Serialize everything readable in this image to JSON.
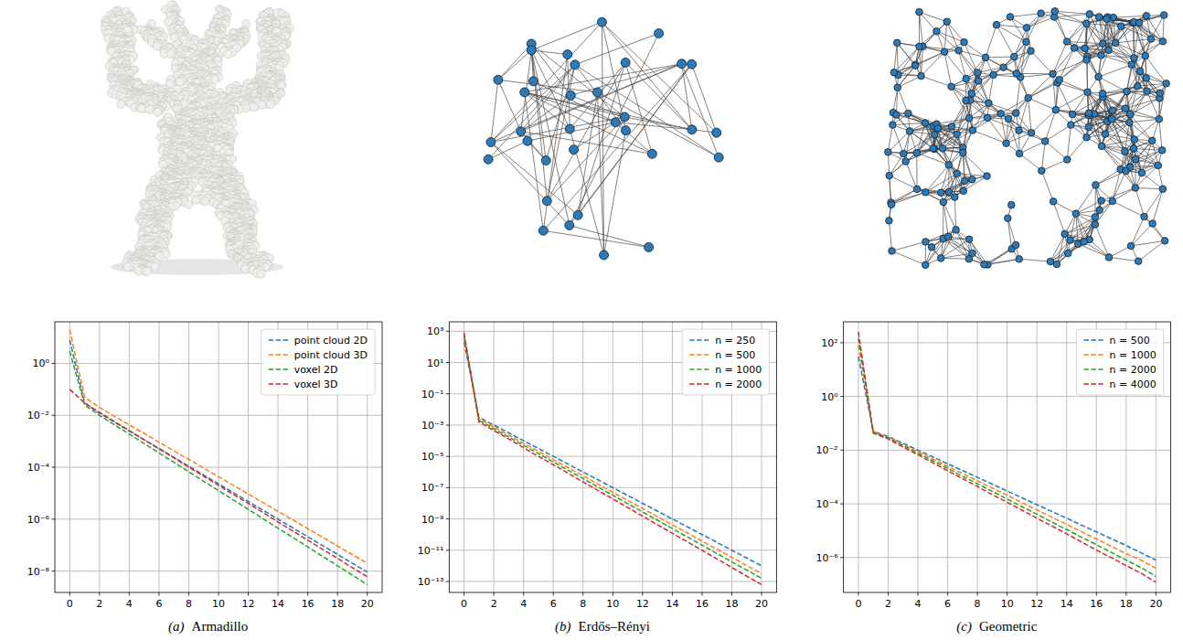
{
  "chart_data": [
    {
      "type": "line",
      "panel_label": "(a)",
      "title": "Armadillo",
      "x": [
        0,
        1,
        2,
        3,
        4,
        5,
        6,
        7,
        8,
        9,
        10,
        11,
        12,
        13,
        14,
        15,
        16,
        17,
        18,
        19,
        20
      ],
      "xlim": [
        -1,
        21
      ],
      "xticks": [
        0,
        2,
        4,
        6,
        8,
        10,
        12,
        14,
        16,
        18,
        20
      ],
      "ylim": [
        1.5e-09,
        40
      ],
      "yticks": [
        {
          "value": 1,
          "label": "10⁰"
        },
        {
          "value": 0.01,
          "label": "10⁻²"
        },
        {
          "value": 0.0001,
          "label": "10⁻⁴"
        },
        {
          "value": 1e-06,
          "label": "10⁻⁶"
        },
        {
          "value": 1e-08,
          "label": "10⁻⁸"
        }
      ],
      "log": "y",
      "grid": true,
      "legend": "upper right",
      "line_style": "dashed",
      "series": [
        {
          "name": "point cloud 2D",
          "color": "#1f77b4",
          "values": [
            8,
            0.03,
            0.012,
            0.0055,
            0.0025,
            0.00115,
            0.00053,
            0.00024,
            0.00011,
            5e-05,
            2.3e-05,
            1.05e-05,
            4.8e-06,
            2.2e-06,
            1e-06,
            4.6e-07,
            2.1e-07,
            9.6e-08,
            4.4e-08,
            2e-08,
            9.2e-09
          ]
        },
        {
          "name": "point cloud 3D",
          "color": "#ff7f0e",
          "values": [
            20,
            0.05,
            0.02,
            0.0093,
            0.0043,
            0.002,
            0.00093,
            0.00043,
            0.0002,
            9.3e-05,
            4.3e-05,
            2e-05,
            9.3e-06,
            4.3e-06,
            2e-06,
            9.3e-07,
            4.3e-07,
            2e-07,
            9.3e-08,
            4.3e-08,
            2e-08
          ]
        },
        {
          "name": "voxel 2D",
          "color": "#2ca02c",
          "values": [
            3,
            0.025,
            0.01,
            0.00435,
            0.00189,
            0.00082,
            0.000357,
            0.000155,
            6.7e-05,
            2.9e-05,
            1.27e-05,
            5.5e-06,
            2.4e-06,
            1.04e-06,
            4.5e-07,
            1.96e-07,
            8.5e-08,
            3.7e-08,
            1.6e-08,
            7e-09,
            3e-09
          ]
        },
        {
          "name": "voxel 3D",
          "color": "#d62728",
          "values": [
            0.1,
            0.03,
            0.013,
            0.0058,
            0.0026,
            0.00114,
            0.00051,
            0.00023,
            0.0001,
            4.5e-05,
            2e-05,
            8.9e-06,
            4e-06,
            1.8e-06,
            7.8e-07,
            3.5e-07,
            1.55e-07,
            6.9e-08,
            3.1e-08,
            1.35e-08,
            6e-09
          ]
        }
      ]
    },
    {
      "type": "line",
      "panel_label": "(b)",
      "title": "Erdős–Rényi",
      "x": [
        0,
        1,
        2,
        3,
        4,
        5,
        6,
        7,
        8,
        9,
        10,
        11,
        12,
        13,
        14,
        15,
        16,
        17,
        18,
        19,
        20
      ],
      "xlim": [
        -1,
        21
      ],
      "xticks": [
        0,
        2,
        4,
        6,
        8,
        10,
        12,
        14,
        16,
        18,
        20
      ],
      "ylim": [
        2e-14,
        4000
      ],
      "yticks": [
        {
          "value": 1000,
          "label": "10³"
        },
        {
          "value": 10,
          "label": "10¹"
        },
        {
          "value": 0.1,
          "label": "10⁻¹"
        },
        {
          "value": 0.001,
          "label": "10⁻³"
        },
        {
          "value": 1e-05,
          "label": "10⁻⁵"
        },
        {
          "value": 1e-07,
          "label": "10⁻⁷"
        },
        {
          "value": 1e-09,
          "label": "10⁻⁹"
        },
        {
          "value": 1e-11,
          "label": "10⁻¹¹"
        },
        {
          "value": 1e-13,
          "label": "10⁻¹³"
        }
      ],
      "log": "y",
      "grid": true,
      "legend": "upper right",
      "line_style": "dashed",
      "series": [
        {
          "name": "n = 250",
          "color": "#1f77b4",
          "values": [
            200,
            0.0032,
            0.001,
            0.00032,
            0.0001,
            3.2e-05,
            1e-05,
            3.2e-06,
            1e-06,
            3.2e-07,
            1e-07,
            3.2e-08,
            1e-08,
            3.2e-09,
            1e-09,
            3.2e-10,
            1e-10,
            3.2e-11,
            1e-11,
            3.2e-12,
            1e-12
          ]
        },
        {
          "name": "n = 500",
          "color": "#ff7f0e",
          "values": [
            400,
            0.0025,
            0.00076,
            0.00023,
            6.9e-05,
            2.1e-05,
            6.2e-06,
            1.9e-06,
            5.7e-07,
            1.7e-07,
            5.1e-08,
            1.55e-08,
            4.7e-09,
            1.4e-09,
            4.2e-10,
            1.3e-10,
            3.8e-11,
            1.16e-11,
            3.5e-12,
            1.05e-12,
            3.2e-13
          ]
        },
        {
          "name": "n = 1000",
          "color": "#2ca02c",
          "values": [
            550,
            0.002,
            0.00059,
            0.00017,
            5.1e-05,
            1.5e-05,
            4.4e-06,
            1.3e-06,
            3.8e-07,
            1.1e-07,
            3.3e-08,
            9.6e-09,
            2.8e-09,
            8.3e-10,
            2.4e-10,
            7.2e-11,
            2.1e-11,
            6.2e-12,
            1.8e-12,
            5.4e-13,
            1.6e-13
          ]
        },
        {
          "name": "n = 2000",
          "color": "#d62728",
          "values": [
            800,
            0.0016,
            0.00045,
            0.00013,
            3.6e-05,
            1e-05,
            2.9e-06,
            8.3e-07,
            2.3e-07,
            6.7e-08,
            1.9e-08,
            5.4e-09,
            1.5e-09,
            4.3e-10,
            1.2e-10,
            3.5e-11,
            9.8e-12,
            2.8e-12,
            7.9e-13,
            2.2e-13,
            6.3e-14
          ]
        }
      ]
    },
    {
      "type": "line",
      "panel_label": "(c)",
      "title": "Geometric",
      "x": [
        0,
        1,
        2,
        3,
        4,
        5,
        6,
        7,
        8,
        9,
        10,
        11,
        12,
        13,
        14,
        15,
        16,
        17,
        18,
        19,
        20
      ],
      "xlim": [
        -1,
        21
      ],
      "xticks": [
        0,
        2,
        4,
        6,
        8,
        10,
        12,
        14,
        16,
        18,
        20
      ],
      "ylim": [
        5e-08,
        600
      ],
      "yticks": [
        {
          "value": 100,
          "label": "10²"
        },
        {
          "value": 1,
          "label": "10⁰"
        },
        {
          "value": 0.01,
          "label": "10⁻²"
        },
        {
          "value": 0.0001,
          "label": "10⁻⁴"
        },
        {
          "value": 1e-06,
          "label": "10⁻⁶"
        }
      ],
      "log": "y",
      "grid": true,
      "legend": "upper right",
      "line_style": "dashed",
      "series": [
        {
          "name": "n = 500",
          "color": "#1f77b4",
          "values": [
            30,
            0.05,
            0.032,
            0.018,
            0.01,
            0.0056,
            0.0031,
            0.00174,
            0.00097,
            0.00054,
            0.0003,
            0.000167,
            9.3e-05,
            5.2e-05,
            2.9e-05,
            1.6e-05,
            9e-06,
            5e-06,
            2.8e-06,
            1.5e-06,
            8e-07
          ]
        },
        {
          "name": "n = 1000",
          "color": "#ff7f0e",
          "values": [
            80,
            0.048,
            0.03,
            0.016,
            0.0087,
            0.0047,
            0.0025,
            0.00135,
            0.00072,
            0.00039,
            0.00021,
            0.00011,
            5.9e-05,
            3.2e-05,
            1.7e-05,
            9.1e-06,
            4.9e-06,
            2.6e-06,
            1.4e-06,
            8e-07,
            4e-07
          ]
        },
        {
          "name": "n = 2000",
          "color": "#2ca02c",
          "values": [
            150,
            0.045,
            0.028,
            0.0147,
            0.0076,
            0.004,
            0.0021,
            0.00107,
            0.00056,
            0.00029,
            0.00015,
            7.8e-05,
            4.1e-05,
            2.1e-05,
            1.1e-05,
            5.7e-06,
            3e-06,
            1.55e-06,
            8e-07,
            4.2e-07,
            2e-07
          ]
        },
        {
          "name": "n = 4000",
          "color": "#d62728",
          "values": [
            250,
            0.043,
            0.026,
            0.013,
            0.0067,
            0.0034,
            0.0017,
            0.00087,
            0.00044,
            0.00022,
            0.000114,
            5.8e-05,
            2.9e-05,
            1.5e-05,
            7.6e-06,
            3.8e-06,
            1.9e-06,
            9.9e-07,
            5e-07,
            2.6e-07,
            1.2e-07
          ]
        }
      ]
    }
  ]
}
